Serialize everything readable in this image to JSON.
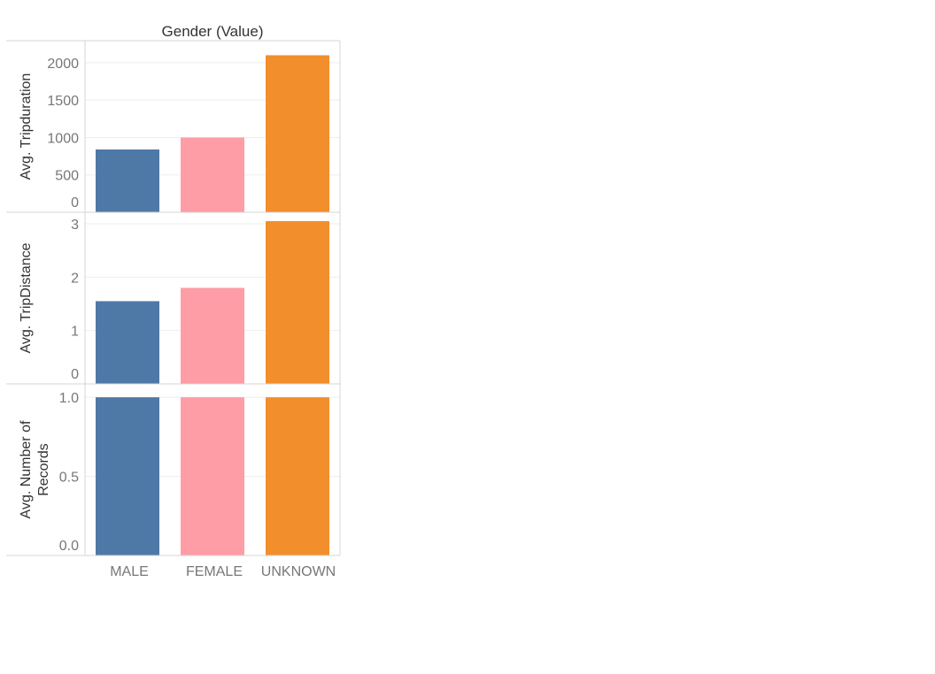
{
  "column_header": "Gender (Value)",
  "colors": {
    "MALE": "#4e79a7",
    "FEMALE": "#ff9da7",
    "UNKNOWN": "#f28e2b",
    "gridline": "#eeeeee",
    "border": "#d4d4d4"
  },
  "chart_data": [
    {
      "type": "bar",
      "title": "Gender (Value)",
      "categories": [
        "MALE",
        "FEMALE",
        "UNKNOWN"
      ],
      "ylabel": "Avg. Tripduration",
      "values": [
        840,
        1000,
        2100
      ],
      "ylim": [
        0,
        2200
      ],
      "yticks": [
        0,
        500,
        1000,
        1500,
        2000
      ],
      "ytick_labels": [
        "0",
        "500",
        "1000",
        "1500",
        "2000"
      ],
      "grid": true
    },
    {
      "type": "bar",
      "categories": [
        "MALE",
        "FEMALE",
        "UNKNOWN"
      ],
      "ylabel": "Avg. TripDistance",
      "values": [
        1.55,
        1.8,
        3.05
      ],
      "ylim": [
        0,
        3.1
      ],
      "yticks": [
        0,
        1,
        2,
        3
      ],
      "ytick_labels": [
        "0",
        "1",
        "2",
        "3"
      ],
      "grid": true
    },
    {
      "type": "bar",
      "categories": [
        "MALE",
        "FEMALE",
        "UNKNOWN"
      ],
      "ylabel_lines": [
        "Avg. Number of",
        "Records"
      ],
      "values": [
        1.0,
        1.0,
        1.0
      ],
      "ylim": [
        0,
        1.04
      ],
      "yticks": [
        0,
        0.5,
        1.0
      ],
      "ytick_labels": [
        "0.0",
        "0.5",
        "1.0"
      ],
      "grid": true
    }
  ]
}
